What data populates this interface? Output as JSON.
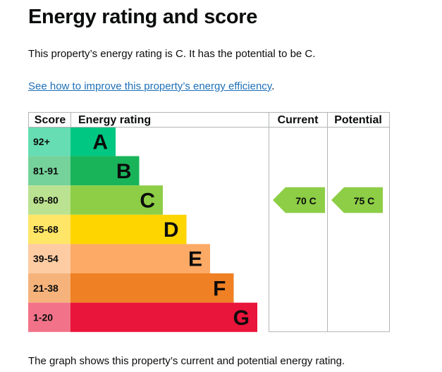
{
  "page": {
    "title": "Energy rating and score",
    "summary": "This property’s energy rating is C. It has the potential to be C.",
    "link_text": "See how to improve this property’s energy efficiency",
    "link_suffix": ".",
    "footer": "The graph shows this property’s current and potential energy rating."
  },
  "chart_data": {
    "type": "bar",
    "headers": {
      "score": "Score",
      "rating": "Energy rating",
      "current": "Current",
      "potential": "Potential"
    },
    "bands": [
      {
        "score": "92+",
        "letter": "A",
        "level": 1,
        "color": "#00c781",
        "score_bg": "#66ddb3"
      },
      {
        "score": "81-91",
        "letter": "B",
        "level": 2,
        "color": "#19b459",
        "score_bg": "#75d29b"
      },
      {
        "score": "69-80",
        "letter": "C",
        "level": 3,
        "color": "#8dce46",
        "score_bg": "#bbe290"
      },
      {
        "score": "55-68",
        "letter": "D",
        "level": 4,
        "color": "#ffd500",
        "score_bg": "#ffe666"
      },
      {
        "score": "39-54",
        "letter": "E",
        "level": 5,
        "color": "#fcaa65",
        "score_bg": "#fdcca3"
      },
      {
        "score": "21-38",
        "letter": "F",
        "level": 6,
        "color": "#ef8023",
        "score_bg": "#f5b37b"
      },
      {
        "score": "1-20",
        "letter": "G",
        "level": 7,
        "color": "#e9153b",
        "score_bg": "#f27389"
      }
    ],
    "current": {
      "value": 70,
      "letter": "C",
      "label": "70 C",
      "color": "#8dce46"
    },
    "potential": {
      "value": 75,
      "letter": "C",
      "label": "75 C",
      "color": "#8dce46"
    }
  }
}
